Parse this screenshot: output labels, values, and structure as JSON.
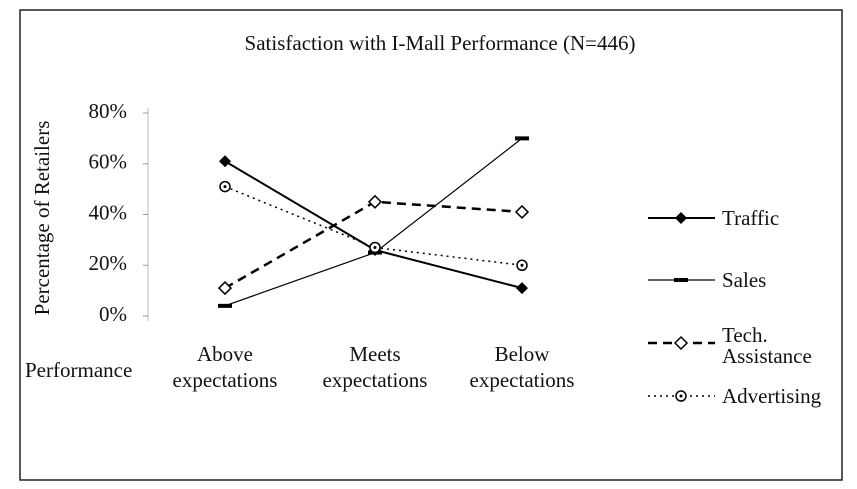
{
  "chart_data": {
    "type": "line",
    "title": "Satisfaction with I-Mall Performance (N=446)",
    "y_label": "Percentage of Retailers",
    "x_label": "Performance",
    "categories": [
      "Above expectations",
      "Meets expectations",
      "Below expectations"
    ],
    "series": [
      {
        "name": "Traffic",
        "color": "#000000",
        "marker": "filled-diamond",
        "line": "solid",
        "values": [
          61,
          26,
          11
        ]
      },
      {
        "name": "Sales",
        "color": "#000000",
        "marker": "dash",
        "line": "thin",
        "values": [
          4,
          25,
          70
        ]
      },
      {
        "name": "Tech. Assistance",
        "color": "#000000",
        "marker": "hollow-diamond",
        "line": "dashed",
        "values": [
          11,
          45,
          41
        ]
      },
      {
        "name": "Advertising",
        "color": "#000000",
        "marker": "hollow-circle",
        "line": "dotted",
        "values": [
          51,
          27,
          20
        ]
      }
    ],
    "ylim": [
      0,
      80
    ],
    "yticks": [
      {
        "value": 0,
        "label": "0%"
      },
      {
        "value": 20,
        "label": "20%"
      },
      {
        "value": 40,
        "label": "40%"
      },
      {
        "value": 60,
        "label": "60%"
      },
      {
        "value": 80,
        "label": "80%"
      }
    ],
    "legend": "right"
  }
}
